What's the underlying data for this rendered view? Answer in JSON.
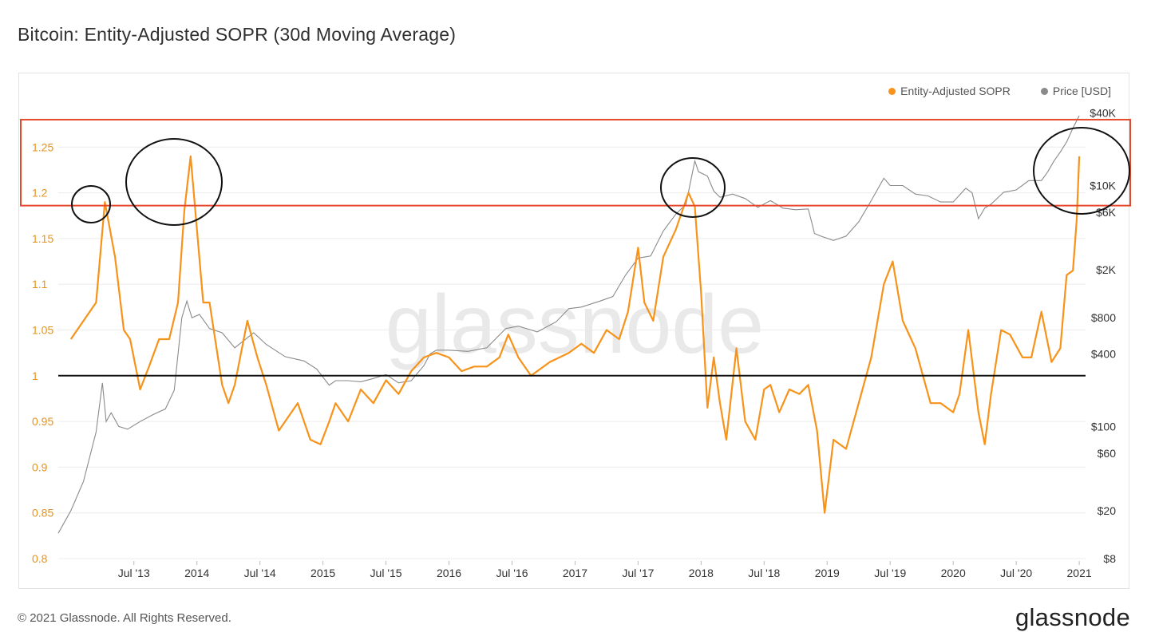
{
  "page": {
    "title": "Bitcoin: Entity-Adjusted SOPR (30d Moving Average)",
    "footer": "© 2021 Glassnode. All Rights Reserved.",
    "brand": "glassnode",
    "watermark": "glassnode"
  },
  "colors": {
    "sopr": "#f7931a",
    "price": "#8a8a8a",
    "axis_left": "#e8911a",
    "axis_right": "#333333",
    "highlight": "#e64a2e",
    "circles": "#111111",
    "baseline": "#111111"
  },
  "chart_data": {
    "type": "line",
    "title": "Bitcoin: Entity-Adjusted SOPR (30d Moving Average)",
    "x_range": [
      2012.9,
      2021.05
    ],
    "x_ticks": [
      {
        "label": "Jul '13",
        "t": 2013.5
      },
      {
        "label": "2014",
        "t": 2014.0
      },
      {
        "label": "Jul '14",
        "t": 2014.5
      },
      {
        "label": "2015",
        "t": 2015.0
      },
      {
        "label": "Jul '15",
        "t": 2015.5
      },
      {
        "label": "2016",
        "t": 2016.0
      },
      {
        "label": "Jul '16",
        "t": 2016.5
      },
      {
        "label": "2017",
        "t": 2017.0
      },
      {
        "label": "Jul '17",
        "t": 2017.5
      },
      {
        "label": "2018",
        "t": 2018.0
      },
      {
        "label": "Jul '18",
        "t": 2018.5
      },
      {
        "label": "2019",
        "t": 2019.0
      },
      {
        "label": "Jul '19",
        "t": 2019.5
      },
      {
        "label": "2020",
        "t": 2020.0
      },
      {
        "label": "Jul '20",
        "t": 2020.5
      },
      {
        "label": "2021",
        "t": 2021.0
      }
    ],
    "y_left": {
      "range": [
        0.8,
        1.3
      ],
      "ticks": [
        {
          "label": "0.8",
          "v": 0.8
        },
        {
          "label": "0.85",
          "v": 0.85
        },
        {
          "label": "0.9",
          "v": 0.9
        },
        {
          "label": "0.95",
          "v": 0.95
        },
        {
          "label": "1",
          "v": 1.0
        },
        {
          "label": "1.05",
          "v": 1.05
        },
        {
          "label": "1.1",
          "v": 1.1
        },
        {
          "label": "1.15",
          "v": 1.15
        },
        {
          "label": "1.2",
          "v": 1.2
        },
        {
          "label": "1.25",
          "v": 1.25
        }
      ]
    },
    "y_right": {
      "scale": "log",
      "range": [
        8,
        50000
      ],
      "ticks": [
        {
          "label": "$8",
          "v": 8
        },
        {
          "label": "$20",
          "v": 20
        },
        {
          "label": "$60",
          "v": 60
        },
        {
          "label": "$100",
          "v": 100
        },
        {
          "label": "$400",
          "v": 400
        },
        {
          "label": "$800",
          "v": 800
        },
        {
          "label": "$2K",
          "v": 2000
        },
        {
          "label": "$6K",
          "v": 6000
        },
        {
          "label": "$10K",
          "v": 10000
        },
        {
          "label": "$40K",
          "v": 40000
        }
      ]
    },
    "baseline": 1.0,
    "highlight_band": [
      1.186,
      1.28
    ],
    "series": [
      {
        "name": "Entity-Adjusted SOPR",
        "axis": "left",
        "x": [
          2013.0,
          2013.1,
          2013.2,
          2013.27,
          2013.35,
          2013.42,
          2013.47,
          2013.55,
          2013.62,
          2013.7,
          2013.78,
          2013.85,
          2013.9,
          2013.95,
          2014.0,
          2014.05,
          2014.1,
          2014.2,
          2014.25,
          2014.3,
          2014.4,
          2014.48,
          2014.55,
          2014.65,
          2014.8,
          2014.9,
          2014.98,
          2015.05,
          2015.1,
          2015.2,
          2015.3,
          2015.4,
          2015.5,
          2015.6,
          2015.7,
          2015.8,
          2015.9,
          2016.0,
          2016.1,
          2016.2,
          2016.3,
          2016.4,
          2016.47,
          2016.55,
          2016.65,
          2016.8,
          2016.95,
          2017.05,
          2017.15,
          2017.25,
          2017.35,
          2017.42,
          2017.5,
          2017.55,
          2017.62,
          2017.7,
          2017.8,
          2017.9,
          2017.95,
          2018.0,
          2018.05,
          2018.1,
          2018.15,
          2018.2,
          2018.28,
          2018.35,
          2018.43,
          2018.5,
          2018.55,
          2018.62,
          2018.7,
          2018.78,
          2018.85,
          2018.92,
          2018.98,
          2019.05,
          2019.15,
          2019.25,
          2019.35,
          2019.45,
          2019.52,
          2019.6,
          2019.7,
          2019.82,
          2019.9,
          2020.0,
          2020.05,
          2020.12,
          2020.2,
          2020.25,
          2020.3,
          2020.38,
          2020.45,
          2020.55,
          2020.62,
          2020.7,
          2020.78,
          2020.85,
          2020.9,
          2020.95,
          2020.98,
          2021.0
        ],
        "values": [
          1.04,
          1.06,
          1.08,
          1.19,
          1.13,
          1.05,
          1.04,
          0.985,
          1.01,
          1.04,
          1.04,
          1.08,
          1.18,
          1.24,
          1.16,
          1.08,
          1.08,
          0.99,
          0.97,
          0.99,
          1.06,
          1.02,
          0.99,
          0.94,
          0.97,
          0.93,
          0.925,
          0.95,
          0.97,
          0.95,
          0.985,
          0.97,
          0.995,
          0.98,
          1.005,
          1.02,
          1.025,
          1.02,
          1.005,
          1.01,
          1.01,
          1.02,
          1.045,
          1.02,
          1.0,
          1.015,
          1.025,
          1.035,
          1.025,
          1.05,
          1.04,
          1.07,
          1.14,
          1.08,
          1.06,
          1.13,
          1.16,
          1.2,
          1.185,
          1.09,
          0.965,
          1.02,
          0.97,
          0.93,
          1.03,
          0.95,
          0.93,
          0.985,
          0.99,
          0.96,
          0.985,
          0.98,
          0.99,
          0.94,
          0.85,
          0.93,
          0.92,
          0.97,
          1.02,
          1.1,
          1.125,
          1.06,
          1.03,
          0.97,
          0.97,
          0.96,
          0.98,
          1.05,
          0.96,
          0.925,
          0.98,
          1.05,
          1.045,
          1.02,
          1.02,
          1.07,
          1.015,
          1.03,
          1.11,
          1.115,
          1.17,
          1.24
        ]
      },
      {
        "name": "Price [USD]",
        "axis": "right",
        "x": [
          2012.9,
          2013.0,
          2013.1,
          2013.2,
          2013.25,
          2013.28,
          2013.32,
          2013.38,
          2013.45,
          2013.55,
          2013.65,
          2013.75,
          2013.82,
          2013.88,
          2013.92,
          2013.96,
          2014.02,
          2014.1,
          2014.2,
          2014.3,
          2014.45,
          2014.55,
          2014.7,
          2014.85,
          2014.95,
          2015.05,
          2015.1,
          2015.2,
          2015.3,
          2015.4,
          2015.5,
          2015.6,
          2015.7,
          2015.8,
          2015.85,
          2015.9,
          2016.0,
          2016.15,
          2016.3,
          2016.45,
          2016.55,
          2016.7,
          2016.85,
          2016.95,
          2017.05,
          2017.2,
          2017.3,
          2017.4,
          2017.5,
          2017.6,
          2017.7,
          2017.8,
          2017.88,
          2017.95,
          2017.98,
          2018.05,
          2018.1,
          2018.15,
          2018.25,
          2018.35,
          2018.45,
          2018.55,
          2018.65,
          2018.75,
          2018.85,
          2018.9,
          2018.95,
          2019.05,
          2019.15,
          2019.25,
          2019.35,
          2019.45,
          2019.5,
          2019.6,
          2019.7,
          2019.8,
          2019.9,
          2020.0,
          2020.1,
          2020.15,
          2020.2,
          2020.25,
          2020.3,
          2020.4,
          2020.5,
          2020.6,
          2020.7,
          2020.75,
          2020.8,
          2020.85,
          2020.9,
          2020.95,
          2021.0
        ],
        "values": [
          13,
          20,
          35,
          90,
          230,
          110,
          130,
          100,
          95,
          110,
          125,
          140,
          200,
          800,
          1100,
          800,
          850,
          650,
          600,
          450,
          600,
          480,
          380,
          350,
          300,
          220,
          240,
          240,
          235,
          250,
          270,
          230,
          240,
          320,
          400,
          430,
          430,
          420,
          450,
          650,
          680,
          610,
          740,
          950,
          980,
          1100,
          1200,
          1800,
          2500,
          2600,
          4200,
          5800,
          7000,
          16000,
          13000,
          12000,
          9000,
          8000,
          8500,
          7800,
          6600,
          7500,
          6500,
          6300,
          6400,
          4000,
          3800,
          3500,
          3800,
          5000,
          7500,
          11500,
          10000,
          10000,
          8500,
          8200,
          7300,
          7300,
          9500,
          8700,
          5300,
          6500,
          7000,
          8800,
          9200,
          11000,
          11000,
          13000,
          16000,
          19000,
          23000,
          30000,
          38000
        ]
      }
    ]
  },
  "legend": {
    "items": [
      {
        "label": "Entity-Adjusted SOPR",
        "color": "#f7931a"
      },
      {
        "label": "Price [USD]",
        "color": "#8a8a8a"
      }
    ]
  },
  "annotations": {
    "circles": [
      {
        "label": "2013 peak",
        "t": 2013.27
      },
      {
        "label": "Late 2013 peak",
        "t": 2013.96
      },
      {
        "label": "Late 2017 peak",
        "t": 2017.98
      },
      {
        "label": "2020-2021 peak",
        "t": 2020.97
      }
    ]
  }
}
